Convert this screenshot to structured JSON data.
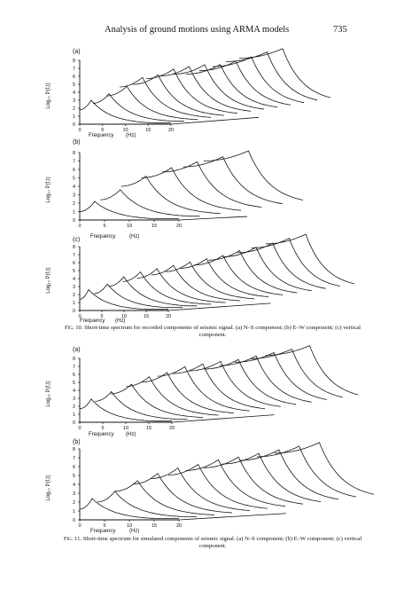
{
  "header": {
    "running_title": "Analysis of ground motions using ARMA models",
    "page_number": "735"
  },
  "figures": [
    {
      "caption_label": "Fig. 10.",
      "caption_text": "Short-time spectrum for recorded components of seismic signal. (a) N–S component; (b) E–W component; (c) vertical component.",
      "panels": [
        {
          "label": "(a)",
          "xlabel": "Frequency",
          "xunit": "(Hz)",
          "ylabel": "Log₁₀ P(f,t)",
          "xticks": [
            "0",
            "5",
            "10",
            "15",
            "20"
          ],
          "yticks": [
            "8",
            "7",
            "6",
            "5",
            "4",
            "3",
            "2",
            "1",
            "0"
          ]
        },
        {
          "label": "(b)",
          "xlabel": "Frequency",
          "xunit": "(Hz)",
          "ylabel": "Log₁₀ P(f,t)",
          "xticks": [
            "0",
            "5",
            "10",
            "15",
            "20"
          ],
          "yticks": [
            "8",
            "7",
            "6",
            "5",
            "4",
            "3",
            "2",
            "1",
            "0"
          ]
        },
        {
          "label": "(c)",
          "xlabel": "Frequency",
          "xunit": "(Hz)",
          "ylabel": "Log₁₀ P(f,t)",
          "xticks": [
            "0",
            "5",
            "10",
            "15",
            "20"
          ],
          "yticks": [
            "8",
            "7",
            "6",
            "5",
            "4",
            "3",
            "2",
            "1",
            "0"
          ]
        }
      ]
    },
    {
      "caption_label": "Fig. 11.",
      "caption_text": "Short-time spectrum for simulated components of seismic signal. (a) N–S component; (b) E–W component; (c) vertical component.",
      "panels": [
        {
          "label": "(a)",
          "xlabel": "Frequency",
          "xunit": "(Hz)",
          "ylabel": "Log₁₀ P(f,t)",
          "xticks": [
            "0",
            "5",
            "10",
            "15",
            "20"
          ],
          "yticks": [
            "8",
            "7",
            "6",
            "5",
            "4",
            "3",
            "2",
            "1",
            "0"
          ]
        },
        {
          "label": "(b)",
          "xlabel": "Frequency",
          "xunit": "(Hz)",
          "ylabel": "Log₁₀ P(f,t)",
          "xticks": [
            "0",
            "5",
            "10",
            "15",
            "20"
          ],
          "yticks": [
            "8",
            "7",
            "6",
            "5",
            "4",
            "3",
            "2",
            "1",
            "0"
          ]
        }
      ]
    }
  ],
  "chart_data": [
    {
      "type": "line",
      "title": "(a)",
      "xlabel": "Frequency (Hz)",
      "ylabel": "Log10 P(f,t)",
      "xlim": [
        0,
        20
      ],
      "ylim": [
        0,
        8
      ],
      "series": [
        {
          "peak_frequency": [
            2.5,
            3.5,
            4.5,
            5,
            5.5,
            6,
            6.5,
            7,
            7.5,
            8,
            8.5,
            9,
            9.5
          ],
          "peak_value": [
            3.0,
            3.6,
            4.3,
            5.2,
            5.3,
            5.8,
            5.9,
            5.9,
            5.7,
            5.9,
            6.2,
            6.6,
            6.8
          ]
        }
      ]
    },
    {
      "type": "line",
      "title": "(b)",
      "xlabel": "Frequency (Hz)",
      "ylabel": "Log10 P(f,t)",
      "xlim": [
        0,
        20
      ],
      "ylim": [
        0,
        8
      ],
      "series": [
        {
          "peak_frequency": [
            3,
            4,
            5,
            6,
            7,
            8,
            9
          ],
          "peak_value": [
            2.2,
            3.3,
            4.6,
            5.3,
            5.7,
            6.0,
            6.4
          ]
        }
      ]
    },
    {
      "type": "line",
      "title": "(c)",
      "xlabel": "Frequency (Hz)",
      "ylabel": "Log10 P(f,t)",
      "xlim": [
        0,
        20
      ],
      "ylim": [
        0,
        8
      ],
      "series": [
        {
          "peak_frequency": [
            2,
            3,
            3.5,
            4,
            4.5,
            5,
            5.5,
            6,
            6.5,
            7,
            7.5,
            8,
            8.5,
            9
          ],
          "peak_value": [
            2.6,
            3.1,
            3.8,
            4.2,
            4.4,
            4.6,
            4.8,
            5.0,
            5.2,
            5.6,
            5.8,
            6.1,
            6.5,
            6.8
          ]
        }
      ]
    },
    {
      "type": "line",
      "title": "(a)",
      "xlabel": "Frequency (Hz)",
      "ylabel": "Log10 P(f,t)",
      "xlim": [
        0,
        20
      ],
      "ylim": [
        0,
        8
      ],
      "series": [
        {
          "peak_frequency": [
            2.5,
            3.5,
            4.5,
            5,
            5.5,
            6,
            6.5,
            7,
            7.5,
            8,
            8.5,
            9,
            9.5
          ],
          "peak_value": [
            2.9,
            3.6,
            4.3,
            5.0,
            5.3,
            5.8,
            5.9,
            6.0,
            6.0,
            6.2,
            6.4,
            6.6,
            6.8
          ]
        }
      ]
    },
    {
      "type": "line",
      "title": "(b)",
      "xlabel": "Frequency (Hz)",
      "ylabel": "Log10 P(f,t)",
      "xlim": [
        0,
        20
      ],
      "ylim": [
        0,
        8
      ],
      "series": [
        {
          "peak_frequency": [
            2.5,
            3.5,
            4.5,
            5,
            5.5,
            6,
            6.5,
            7,
            7.5,
            8,
            8.5,
            9
          ],
          "peak_value": [
            2.4,
            3.0,
            4.0,
            4.6,
            5.0,
            5.2,
            5.5,
            5.6,
            5.8,
            6.0,
            6.2,
            6.4
          ]
        }
      ]
    }
  ]
}
